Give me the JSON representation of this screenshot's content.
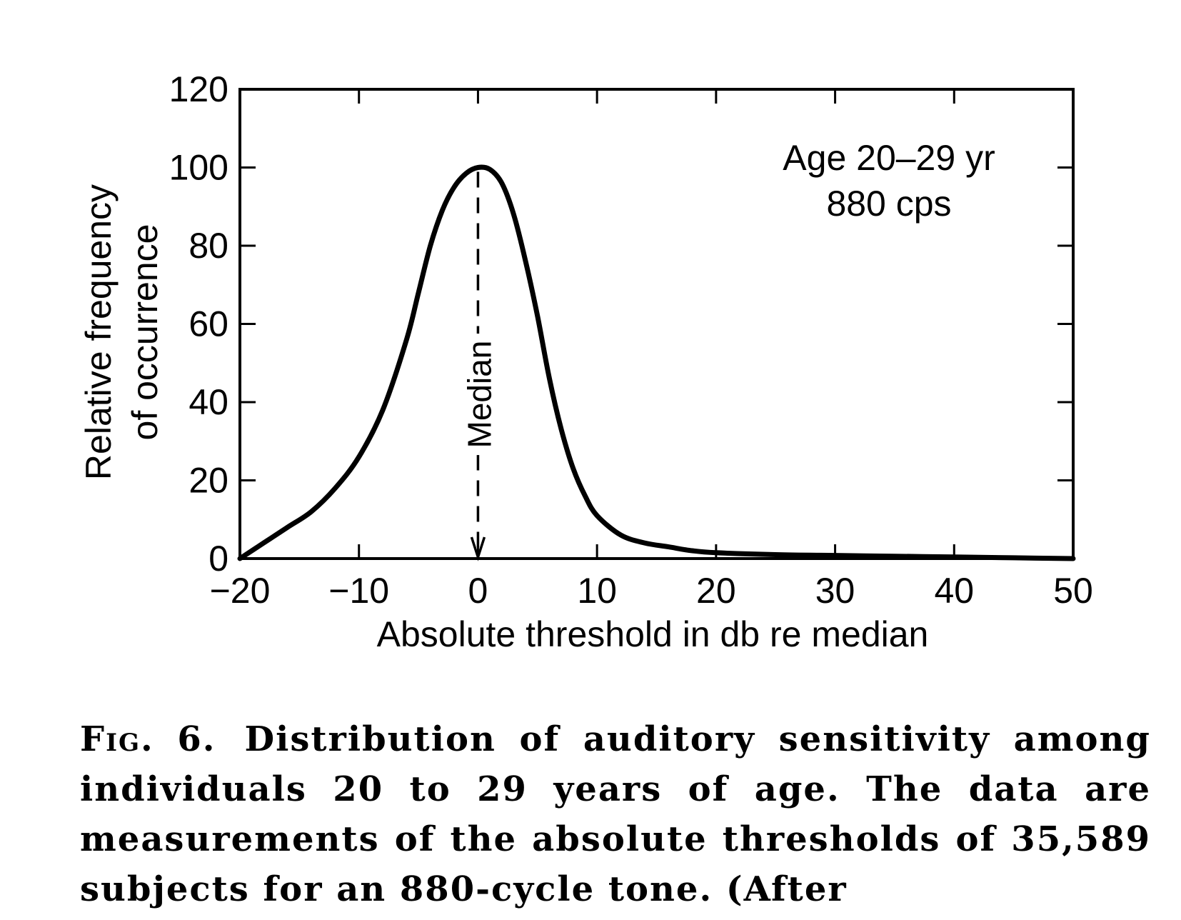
{
  "chart_data": {
    "type": "line",
    "xlabel": "Absolute threshold in db re median",
    "ylabel_lines": [
      "Relative frequency",
      "of occurrence"
    ],
    "xlim": [
      -20,
      50
    ],
    "ylim": [
      0,
      120
    ],
    "x_ticks": [
      -20,
      -10,
      0,
      10,
      20,
      30,
      40,
      50
    ],
    "x_tick_labels": [
      "−20",
      "−10",
      "0",
      "10",
      "20",
      "30",
      "40",
      "50"
    ],
    "y_ticks": [
      0,
      20,
      40,
      60,
      80,
      100,
      120
    ],
    "y_tick_labels": [
      "0",
      "20",
      "40",
      "60",
      "80",
      "100",
      "120"
    ],
    "series": [
      {
        "x": [
          -20,
          -18,
          -16,
          -14,
          -12,
          -10,
          -8,
          -6,
          -5,
          -4,
          -3,
          -2,
          -1,
          0,
          1,
          2,
          3,
          4,
          5,
          6,
          7,
          8,
          9,
          10,
          12,
          14,
          16,
          18,
          20,
          25,
          30,
          35,
          40,
          45,
          50
        ],
        "y": [
          0,
          4,
          8,
          12,
          18,
          26,
          38,
          56,
          68,
          80,
          89,
          95,
          98.5,
          100,
          99.5,
          96,
          88,
          76,
          62,
          46,
          33,
          23,
          16,
          11,
          6,
          4,
          3,
          2,
          1.5,
          1,
          0.8,
          0.6,
          0.4,
          0.2,
          0
        ]
      }
    ],
    "annotations": {
      "inset_line1": "Age 20–29 yr",
      "inset_line2": "880 cps",
      "median_label": "Median",
      "median_x": 0
    },
    "grid": false,
    "caption": {
      "figure_label": "Fig. 6.",
      "text": "Distribution of auditory sensitivity among individuals 20 to 29 years of age. The data are measurements of the absolute thresholds of 35,589 subjects for an 880-cycle tone. (After"
    }
  }
}
